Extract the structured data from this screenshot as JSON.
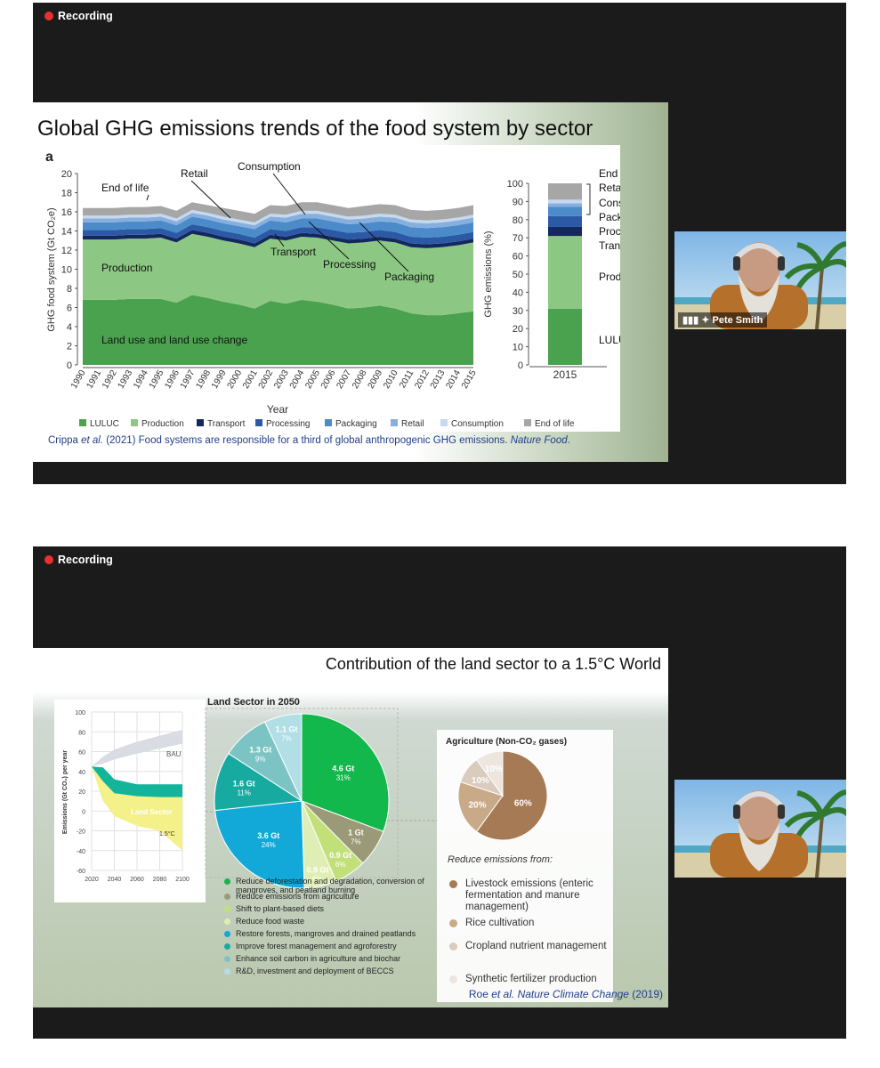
{
  "recording_label": "Recording",
  "participant_name": "Pete Smith",
  "slide1": {
    "title": "Global GHG emissions trends of the food system by sector",
    "panel_letter": "a",
    "ylabel": "GHG food system (Gt CO₂e)",
    "xlabel": "Year",
    "bar_ylabel": "GHG emissions (%)",
    "bar_xtick": "2015",
    "labels": {
      "end_of_life": "End of life",
      "retail": "Retail",
      "consumption": "Consumption",
      "transport": "Transport",
      "processing": "Processing",
      "packaging": "Packaging",
      "production": "Production",
      "luluc_long": "Land use and land use change"
    },
    "bar_labels": [
      "End of life",
      "Retail",
      "Consumption",
      "Packaging",
      "Processing",
      "Transport",
      "Production",
      "LULUC"
    ],
    "legend": [
      "LULUC",
      "Production",
      "Transport",
      "Processing",
      "Packaging",
      "Retail",
      "Consumption",
      "End of life"
    ],
    "citation_prefix": "Crippa ",
    "citation_etal": "et al.",
    "citation_mid": " (2021) Food systems are responsible for a third of global anthropogenic GHG emissions. ",
    "citation_journal": "Nature Food",
    "citation_end": "."
  },
  "slide2": {
    "title": "Contribution of the land sector to a 1.5°C World",
    "pie_title": "Land Sector in 2050",
    "line_ylabel": "Emissions (Gt CO₂) per year",
    "line_labels": {
      "bau": "BAU",
      "land_sector": "Land Sector",
      "c15": "1.5°C"
    },
    "agri_title": "Agriculture (Non-CO₂ gases)",
    "agri_reduce": "Reduce emissions from:",
    "agri_legend": [
      "Livestock emissions (enteric fermentation and manure management)",
      "Rice cultivation",
      "Cropland nutrient management",
      "Synthetic fertilizer production"
    ],
    "land_legend": [
      "Reduce deforestation and degradation, conversion of mangroves, and peatland burning",
      "Reduce emissions from agriculture",
      "Shift to plant-based diets",
      "Reduce food waste",
      "Restore forests, mangroves and drained peatlands",
      "Improve forest management and agroforestry",
      "Enhance soil carbon in agriculture and biochar",
      "R&D, investment and deployment of BECCS"
    ],
    "citation_authors": "Roe ",
    "citation_etal": "et al. Nature Climate Change",
    "citation_year": " (2019)"
  },
  "colors": {
    "luluc": "#4aa14e",
    "production": "#8cc883",
    "transport": "#14285e",
    "processing": "#2b59a5",
    "packaging": "#4c8bca",
    "retail": "#87afde",
    "consumption": "#c6d9ef",
    "end_of_life": "#a6a6a6"
  },
  "chart_data": [
    {
      "type": "area",
      "ylabel": "GHG food system (Gt CO₂e)",
      "xlabel": "Year",
      "ylim": [
        0,
        20
      ],
      "yticks": [
        0,
        2,
        4,
        6,
        8,
        10,
        12,
        14,
        16,
        18,
        20
      ],
      "x": [
        1990,
        1991,
        1992,
        1993,
        1994,
        1995,
        1996,
        1997,
        1998,
        1999,
        2000,
        2001,
        2002,
        2003,
        2004,
        2005,
        2006,
        2007,
        2008,
        2009,
        2010,
        2011,
        2012,
        2013,
        2014,
        2015
      ],
      "series": [
        {
          "name": "LULUC",
          "values": [
            6.8,
            6.8,
            6.8,
            6.9,
            6.9,
            6.9,
            6.5,
            7.3,
            7.0,
            6.6,
            6.3,
            5.9,
            6.7,
            6.4,
            6.8,
            6.6,
            6.3,
            5.9,
            6.0,
            6.2,
            5.9,
            5.4,
            5.2,
            5.2,
            5.4,
            5.6
          ]
        },
        {
          "name": "Production",
          "values": [
            6.3,
            6.3,
            6.3,
            6.3,
            6.3,
            6.4,
            6.3,
            6.4,
            6.4,
            6.4,
            6.4,
            6.4,
            6.5,
            6.6,
            6.6,
            6.7,
            6.7,
            6.8,
            6.8,
            6.8,
            6.9,
            6.9,
            7.0,
            7.1,
            7.1,
            7.2
          ]
        },
        {
          "name": "Transport",
          "values": [
            0.4,
            0.4,
            0.4,
            0.4,
            0.4,
            0.4,
            0.4,
            0.4,
            0.4,
            0.4,
            0.4,
            0.4,
            0.4,
            0.4,
            0.4,
            0.4,
            0.4,
            0.4,
            0.4,
            0.4,
            0.4,
            0.4,
            0.4,
            0.4,
            0.4,
            0.4
          ]
        },
        {
          "name": "Processing",
          "values": [
            0.6,
            0.6,
            0.6,
            0.6,
            0.6,
            0.6,
            0.6,
            0.6,
            0.6,
            0.6,
            0.6,
            0.6,
            0.6,
            0.6,
            0.6,
            0.7,
            0.7,
            0.7,
            0.7,
            0.7,
            0.7,
            0.7,
            0.7,
            0.7,
            0.7,
            0.7
          ]
        },
        {
          "name": "Packaging",
          "values": [
            0.8,
            0.8,
            0.8,
            0.8,
            0.8,
            0.8,
            0.8,
            0.8,
            0.8,
            0.8,
            0.8,
            0.9,
            0.9,
            0.9,
            0.9,
            0.9,
            0.9,
            0.9,
            0.9,
            0.9,
            1.0,
            1.0,
            1.0,
            1.0,
            1.0,
            1.0
          ]
        },
        {
          "name": "Retail",
          "values": [
            0.4,
            0.4,
            0.4,
            0.4,
            0.4,
            0.4,
            0.4,
            0.4,
            0.4,
            0.4,
            0.4,
            0.4,
            0.4,
            0.5,
            0.5,
            0.5,
            0.5,
            0.5,
            0.5,
            0.5,
            0.5,
            0.5,
            0.5,
            0.5,
            0.5,
            0.5
          ]
        },
        {
          "name": "Consumption",
          "values": [
            0.3,
            0.3,
            0.3,
            0.3,
            0.3,
            0.3,
            0.3,
            0.3,
            0.3,
            0.3,
            0.3,
            0.3,
            0.3,
            0.3,
            0.3,
            0.3,
            0.3,
            0.3,
            0.3,
            0.3,
            0.3,
            0.3,
            0.3,
            0.3,
            0.3,
            0.3
          ]
        },
        {
          "name": "End of life",
          "values": [
            0.8,
            0.8,
            0.8,
            0.8,
            0.8,
            0.8,
            0.8,
            0.8,
            0.8,
            0.9,
            0.9,
            0.9,
            0.9,
            0.9,
            0.9,
            0.9,
            0.9,
            0.9,
            1.0,
            1.0,
            1.0,
            1.0,
            1.0,
            1.0,
            1.0,
            1.0
          ]
        }
      ]
    },
    {
      "type": "bar",
      "ylabel": "GHG emissions (%)",
      "categories": [
        "2015"
      ],
      "ylim": [
        0,
        100
      ],
      "yticks": [
        0,
        10,
        20,
        30,
        40,
        50,
        60,
        70,
        80,
        90,
        100
      ],
      "series": [
        {
          "name": "LULUC",
          "values": [
            31
          ]
        },
        {
          "name": "Production",
          "values": [
            40
          ]
        },
        {
          "name": "Transport",
          "values": [
            5
          ]
        },
        {
          "name": "Processing",
          "values": [
            6
          ]
        },
        {
          "name": "Packaging",
          "values": [
            5
          ]
        },
        {
          "name": "Retail",
          "values": [
            2
          ]
        },
        {
          "name": "Consumption",
          "values": [
            2
          ]
        },
        {
          "name": "End of life",
          "values": [
            9
          ]
        }
      ]
    },
    {
      "type": "area",
      "ylabel": "Emissions (Gt CO₂) per year",
      "x": [
        2020,
        2030,
        2040,
        2060,
        2080,
        2100
      ],
      "xticks": [
        2020,
        2040,
        2060,
        2080,
        2100
      ],
      "yticks": [
        100,
        80,
        60,
        40,
        20,
        0,
        -20,
        -40,
        -60
      ],
      "ylim": [
        -60,
        100
      ],
      "series": [
        {
          "name": "BAU",
          "lower": [
            45,
            48,
            52,
            58,
            63,
            68
          ],
          "upper": [
            45,
            55,
            62,
            70,
            76,
            82
          ]
        },
        {
          "name": "Land Sector",
          "lower": [
            45,
            30,
            18,
            15,
            14,
            14
          ],
          "upper": [
            45,
            44,
            32,
            27,
            27,
            27
          ]
        },
        {
          "name": "1.5°C",
          "lower": [
            45,
            10,
            -5,
            -15,
            -20,
            -40
          ],
          "upper": [
            45,
            30,
            18,
            15,
            14,
            14
          ]
        }
      ]
    },
    {
      "type": "pie",
      "title": "Land Sector in 2050",
      "slices": [
        {
          "value_label": "4.6 Gt",
          "pct_label": "31%",
          "value": 31,
          "color": "#12b84c"
        },
        {
          "value_label": "1 Gt",
          "pct_label": "7%",
          "value": 7,
          "color": "#9a9a78"
        },
        {
          "value_label": "0.9 Gt",
          "pct_label": "6%",
          "value": 6,
          "color": "#c2e07a"
        },
        {
          "value_label": "0.9 Gt",
          "pct_label": "6%",
          "value": 6,
          "color": "#dfeeb4"
        },
        {
          "value_label": "3.6 Gt",
          "pct_label": "24%",
          "value": 24,
          "color": "#12a8d8"
        },
        {
          "value_label": "1.6 Gt",
          "pct_label": "11%",
          "value": 11,
          "color": "#16aaa0"
        },
        {
          "value_label": "1.3 Gt",
          "pct_label": "9%",
          "value": 9,
          "color": "#7cc4c4"
        },
        {
          "value_label": "1.1 Gt",
          "pct_label": "7%",
          "value": 7,
          "color": "#b2dee6"
        }
      ]
    },
    {
      "type": "pie",
      "title": "Agriculture (Non-CO₂ gases)",
      "slices": [
        {
          "pct_label": "60%",
          "value": 60,
          "color": "#a57a54"
        },
        {
          "pct_label": "20%",
          "value": 20,
          "color": "#c9aa88"
        },
        {
          "pct_label": "10%",
          "value": 10,
          "color": "#d9cbbd"
        },
        {
          "pct_label": "10%",
          "value": 10,
          "color": "#ece6df"
        }
      ]
    }
  ]
}
